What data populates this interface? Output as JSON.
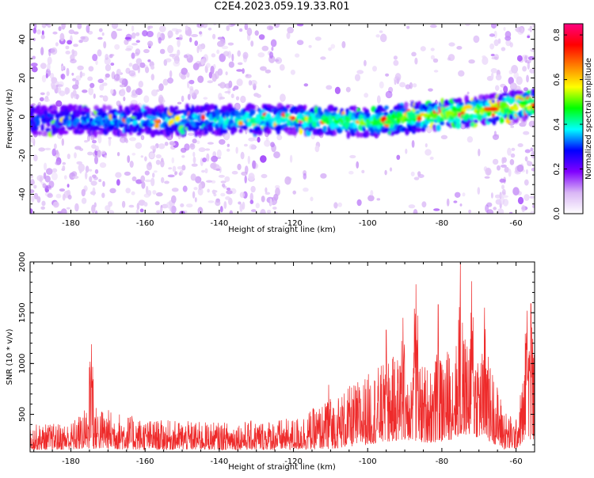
{
  "figure": {
    "title": "C2E4.2023.059.19.33.R01"
  },
  "chart_data": [
    {
      "type": "heatmap",
      "title": "",
      "xlabel": "Height of straight line (km)",
      "ylabel": "Frequency (Hz)",
      "xlim": [
        -191,
        -55
      ],
      "ylim": [
        -50,
        48
      ],
      "x_ticks": [
        -180,
        -160,
        -140,
        -120,
        -100,
        -80,
        -60
      ],
      "y_ticks": [
        -40,
        -20,
        0,
        20,
        40
      ],
      "grid": false,
      "description_values": {
        "band_center_frequency": [
          {
            "x": -191,
            "y": -2
          },
          {
            "x": -160,
            "y": -2
          },
          {
            "x": -120,
            "y": -1
          },
          {
            "x": -100,
            "y": -3
          },
          {
            "x": -80,
            "y": 1
          },
          {
            "x": -70,
            "y": 3
          },
          {
            "x": -57,
            "y": 6
          }
        ],
        "band_half_width_hz": 7
      },
      "colorbar": {
        "label": "Normalized spectral amplitude",
        "range": [
          0.0,
          0.85
        ],
        "ticks": [
          "0.0",
          "0.2",
          "0.4",
          "0.6",
          "0.8"
        ],
        "colormap": [
          "#ffffff",
          "#d9b6f5",
          "#8000ff",
          "#0000ff",
          "#00ffff",
          "#00ff00",
          "#ffff00",
          "#ff8000",
          "#ff0000",
          "#ff0080"
        ]
      }
    },
    {
      "type": "line",
      "title": "",
      "xlabel": "Height of straight line (km)",
      "ylabel": "SNR (10 * v/v)",
      "xlim": [
        -191,
        -55
      ],
      "ylim": [
        130,
        2000
      ],
      "x_ticks": [
        -180,
        -160,
        -140,
        -120,
        -100,
        -80,
        -60
      ],
      "y_ticks": [
        500,
        1000,
        1500,
        2000
      ],
      "grid": false,
      "line_color": "#ee2a2a",
      "series": [
        {
          "envelope": [
            {
              "x": -191,
              "lo": 150,
              "hi": 400
            },
            {
              "x": -180,
              "lo": 150,
              "hi": 420
            },
            {
              "x": -175,
              "lo": 160,
              "hi": 600
            },
            {
              "x": -160,
              "lo": 150,
              "hi": 450
            },
            {
              "x": -140,
              "lo": 150,
              "hi": 420
            },
            {
              "x": -120,
              "lo": 150,
              "hi": 460
            },
            {
              "x": -110,
              "lo": 160,
              "hi": 650
            },
            {
              "x": -100,
              "lo": 200,
              "hi": 900
            },
            {
              "x": -90,
              "lo": 250,
              "hi": 1150
            },
            {
              "x": -85,
              "lo": 220,
              "hi": 1000
            },
            {
              "x": -80,
              "lo": 220,
              "hi": 1100
            },
            {
              "x": -74,
              "lo": 300,
              "hi": 1300
            },
            {
              "x": -68,
              "lo": 250,
              "hi": 1150
            },
            {
              "x": -63,
              "lo": 150,
              "hi": 550
            },
            {
              "x": -60,
              "lo": 160,
              "hi": 450
            },
            {
              "x": -57,
              "lo": 250,
              "hi": 1150
            },
            {
              "x": -55,
              "lo": 250,
              "hi": 1100
            }
          ],
          "peaks": [
            {
              "x": -174.5,
              "y": 1190
            },
            {
              "x": -110.5,
              "y": 790
            },
            {
              "x": -95,
              "y": 1330
            },
            {
              "x": -90.5,
              "y": 1450
            },
            {
              "x": -87,
              "y": 1780
            },
            {
              "x": -81,
              "y": 1580
            },
            {
              "x": -75,
              "y": 2000
            },
            {
              "x": -72,
              "y": 1810
            },
            {
              "x": -68.5,
              "y": 1550
            },
            {
              "x": -57,
              "y": 1520
            },
            {
              "x": -56,
              "y": 1590
            }
          ]
        }
      ]
    }
  ]
}
